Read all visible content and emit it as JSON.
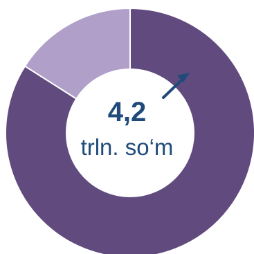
{
  "chart_data": {
    "type": "pie",
    "style": "donut",
    "slices": [
      {
        "value": 84,
        "color": "#614a7e"
      },
      {
        "value": 16,
        "color": "#b09fc9"
      }
    ],
    "center": {
      "value": "4,2",
      "unit": "trln. so‘m",
      "arrow": "up-right",
      "color": "#1f4a7a"
    }
  }
}
